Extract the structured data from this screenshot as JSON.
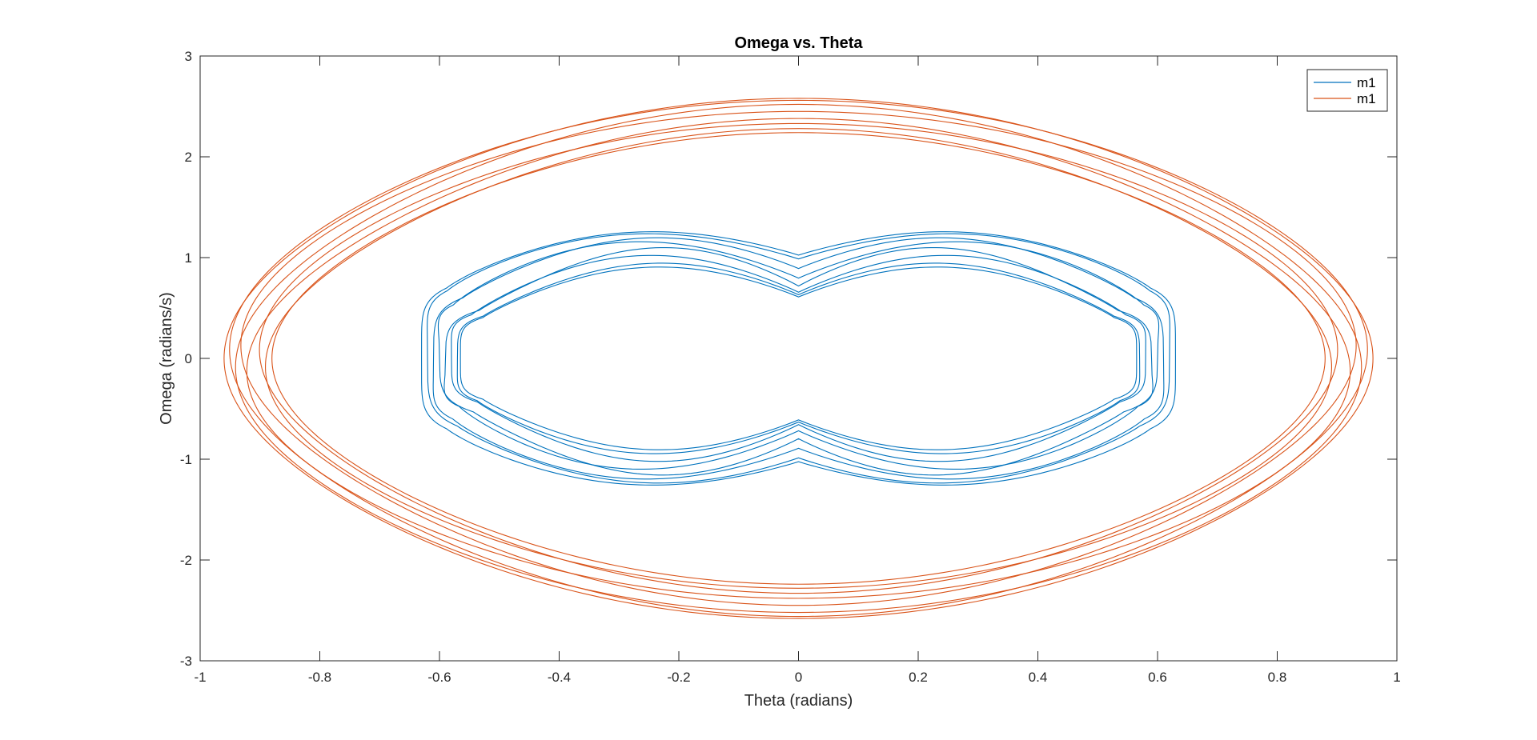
{
  "chart_data": {
    "type": "line",
    "title": "Omega vs. Theta",
    "xlabel": "Theta (radians)",
    "ylabel": "Omega (radians/s)",
    "xlim": [
      -1,
      1
    ],
    "ylim": [
      -3,
      3
    ],
    "xticks": [
      -1,
      -0.8,
      -0.6,
      -0.4,
      -0.2,
      0,
      0.2,
      0.4,
      0.6,
      0.8,
      1
    ],
    "xtick_labels": [
      "-1",
      "-0.8",
      "-0.6",
      "-0.4",
      "-0.2",
      "0",
      "0.2",
      "0.4",
      "0.6",
      "0.8",
      "1"
    ],
    "yticks": [
      -3,
      -2,
      -1,
      0,
      1,
      2,
      3
    ],
    "ytick_labels": [
      "-3",
      "-2",
      "-1",
      "0",
      "1",
      "2",
      "3"
    ],
    "grid": false,
    "legend_position": "top-right",
    "series": [
      {
        "name": "m1",
        "color": "#0072BD",
        "shape": "double-lobed closed orbit, precessing",
        "theta_range": [
          -0.64,
          0.64
        ],
        "omega_range": [
          -1.3,
          1.3
        ],
        "orbits": [
          {
            "theta_amp": 0.63,
            "omega_peak": 1.3,
            "omega_mid": 1.0,
            "phase": 0.0
          },
          {
            "theta_amp": 0.62,
            "omega_peak": 1.28,
            "omega_mid": 0.96,
            "phase": 0.05
          },
          {
            "theta_amp": 0.61,
            "omega_peak": 1.24,
            "omega_mid": 0.86,
            "phase": -0.05
          },
          {
            "theta_amp": 0.6,
            "omega_peak": 1.2,
            "omega_mid": 0.76,
            "phase": 0.1
          },
          {
            "theta_amp": 0.59,
            "omega_peak": 1.14,
            "omega_mid": 0.68,
            "phase": -0.1
          },
          {
            "theta_amp": 0.58,
            "omega_peak": 1.06,
            "omega_mid": 0.62,
            "phase": 0.03
          },
          {
            "theta_amp": 0.57,
            "omega_peak": 0.98,
            "omega_mid": 0.6,
            "phase": -0.03
          },
          {
            "theta_amp": 0.565,
            "omega_peak": 0.94,
            "omega_mid": 0.58,
            "phase": 0.0
          }
        ]
      },
      {
        "name": "m1",
        "color": "#D95319",
        "shape": "lens-shaped closed orbit, precessing",
        "theta_range": [
          -0.96,
          0.96
        ],
        "omega_range": [
          -2.58,
          2.58
        ],
        "orbits": [
          {
            "theta_amp": 0.96,
            "omega_peak": 2.58,
            "phase": 0.0
          },
          {
            "theta_amp": 0.95,
            "omega_peak": 2.56,
            "phase": 0.02
          },
          {
            "theta_amp": 0.94,
            "omega_peak": 2.52,
            "phase": -0.02
          },
          {
            "theta_amp": 0.93,
            "omega_peak": 2.45,
            "phase": 0.03
          },
          {
            "theta_amp": 0.92,
            "omega_peak": 2.38,
            "phase": -0.03
          },
          {
            "theta_amp": 0.9,
            "omega_peak": 2.33,
            "phase": 0.02
          },
          {
            "theta_amp": 0.89,
            "omega_peak": 2.28,
            "phase": -0.02
          },
          {
            "theta_amp": 0.88,
            "omega_peak": 2.24,
            "phase": 0.0
          }
        ]
      }
    ]
  }
}
